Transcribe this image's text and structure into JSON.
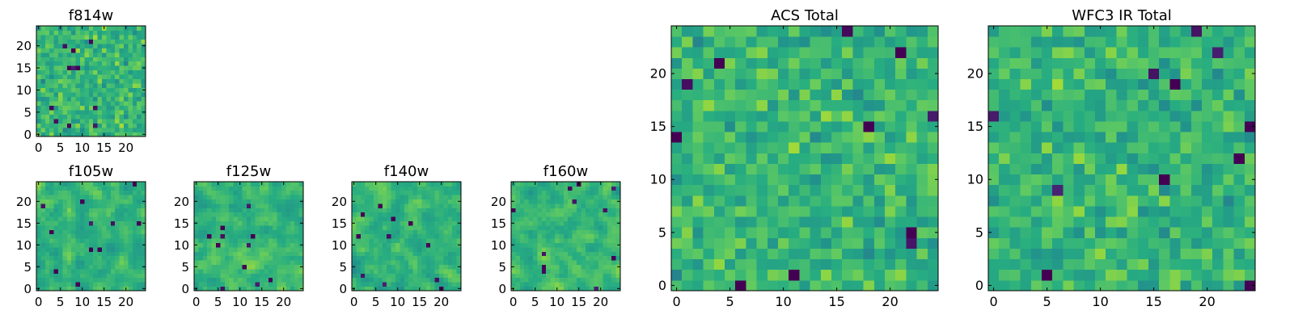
{
  "chart_data": [
    {
      "id": "f814w",
      "type": "heatmap",
      "title": "f814w",
      "cmap": "viridis",
      "grid": false,
      "x": {
        "lim": [
          -0.5,
          24.5
        ],
        "ticks": [
          0,
          5,
          10,
          15,
          20
        ],
        "labels": [
          "0",
          "5",
          "10",
          "15",
          "20"
        ]
      },
      "y": {
        "lim": [
          -0.5,
          24.5
        ],
        "ticks": [
          0,
          5,
          10,
          15,
          20
        ],
        "labels": [
          "0",
          "5",
          "10",
          "15",
          "20"
        ]
      },
      "shape": [
        25,
        25
      ],
      "seed": 11,
      "smooth": 0,
      "vmin": 0,
      "vmax": 1
    },
    {
      "id": "f105w",
      "type": "heatmap",
      "title": "f105w",
      "cmap": "viridis",
      "grid": false,
      "x": {
        "lim": [
          -0.5,
          24.5
        ],
        "ticks": [
          0,
          5,
          10,
          15,
          20
        ],
        "labels": [
          "0",
          "5",
          "10",
          "15",
          "20"
        ]
      },
      "y": {
        "lim": [
          -0.5,
          24.5
        ],
        "ticks": [
          0,
          5,
          10,
          15,
          20
        ],
        "labels": [
          "0",
          "5",
          "10",
          "15",
          "20"
        ]
      },
      "shape": [
        25,
        25
      ],
      "seed": 23,
      "smooth": 1,
      "vmin": 0,
      "vmax": 1
    },
    {
      "id": "f125w",
      "type": "heatmap",
      "title": "f125w",
      "cmap": "viridis",
      "grid": false,
      "x": {
        "lim": [
          -0.5,
          24.5
        ],
        "ticks": [
          0,
          5,
          10,
          15,
          20
        ],
        "labels": [
          "0",
          "5",
          "10",
          "15",
          "20"
        ]
      },
      "y": {
        "lim": [
          -0.5,
          24.5
        ],
        "ticks": [
          0,
          5,
          10,
          15,
          20
        ],
        "labels": [
          "0",
          "5",
          "10",
          "15",
          "20"
        ]
      },
      "shape": [
        25,
        25
      ],
      "seed": 37,
      "smooth": 1,
      "vmin": 0,
      "vmax": 1
    },
    {
      "id": "f140w",
      "type": "heatmap",
      "title": "f140w",
      "cmap": "viridis",
      "grid": false,
      "x": {
        "lim": [
          -0.5,
          24.5
        ],
        "ticks": [
          0,
          5,
          10,
          15,
          20
        ],
        "labels": [
          "0",
          "5",
          "10",
          "15",
          "20"
        ]
      },
      "y": {
        "lim": [
          -0.5,
          24.5
        ],
        "ticks": [
          0,
          5,
          10,
          15,
          20
        ],
        "labels": [
          "0",
          "5",
          "10",
          "15",
          "20"
        ]
      },
      "shape": [
        25,
        25
      ],
      "seed": 53,
      "smooth": 1,
      "vmin": 0,
      "vmax": 1
    },
    {
      "id": "f160w",
      "type": "heatmap",
      "title": "f160w",
      "cmap": "viridis",
      "grid": false,
      "x": {
        "lim": [
          -0.5,
          24.5
        ],
        "ticks": [
          0,
          5,
          10,
          15,
          20
        ],
        "labels": [
          "0",
          "5",
          "10",
          "15",
          "20"
        ]
      },
      "y": {
        "lim": [
          -0.5,
          24.5
        ],
        "ticks": [
          0,
          5,
          10,
          15,
          20
        ],
        "labels": [
          "0",
          "5",
          "10",
          "15",
          "20"
        ]
      },
      "shape": [
        25,
        25
      ],
      "seed": 71,
      "smooth": 1,
      "vmin": 0,
      "vmax": 1
    },
    {
      "id": "acs-total",
      "type": "heatmap",
      "title": "ACS Total",
      "cmap": "viridis",
      "grid": false,
      "x": {
        "lim": [
          -0.5,
          24.5
        ],
        "ticks": [
          0,
          5,
          10,
          15,
          20
        ],
        "labels": [
          "0",
          "5",
          "10",
          "15",
          "20"
        ]
      },
      "y": {
        "lim": [
          -0.5,
          24.5
        ],
        "ticks": [
          0,
          5,
          10,
          15,
          20
        ],
        "labels": [
          "0",
          "5",
          "10",
          "15",
          "20"
        ]
      },
      "shape": [
        25,
        25
      ],
      "seed": 89,
      "smooth": 0,
      "vmin": 0,
      "vmax": 1
    },
    {
      "id": "wfc3-ir-total",
      "type": "heatmap",
      "title": "WFC3 IR Total",
      "cmap": "viridis",
      "grid": false,
      "x": {
        "lim": [
          -0.5,
          24.5
        ],
        "ticks": [
          0,
          5,
          10,
          15,
          20
        ],
        "labels": [
          "0",
          "5",
          "10",
          "15",
          "20"
        ]
      },
      "y": {
        "lim": [
          -0.5,
          24.5
        ],
        "ticks": [
          0,
          5,
          10,
          15,
          20
        ],
        "labels": [
          "0",
          "5",
          "10",
          "15",
          "20"
        ]
      },
      "shape": [
        25,
        25
      ],
      "seed": 97,
      "smooth": 0,
      "vmin": 0,
      "vmax": 1
    }
  ]
}
